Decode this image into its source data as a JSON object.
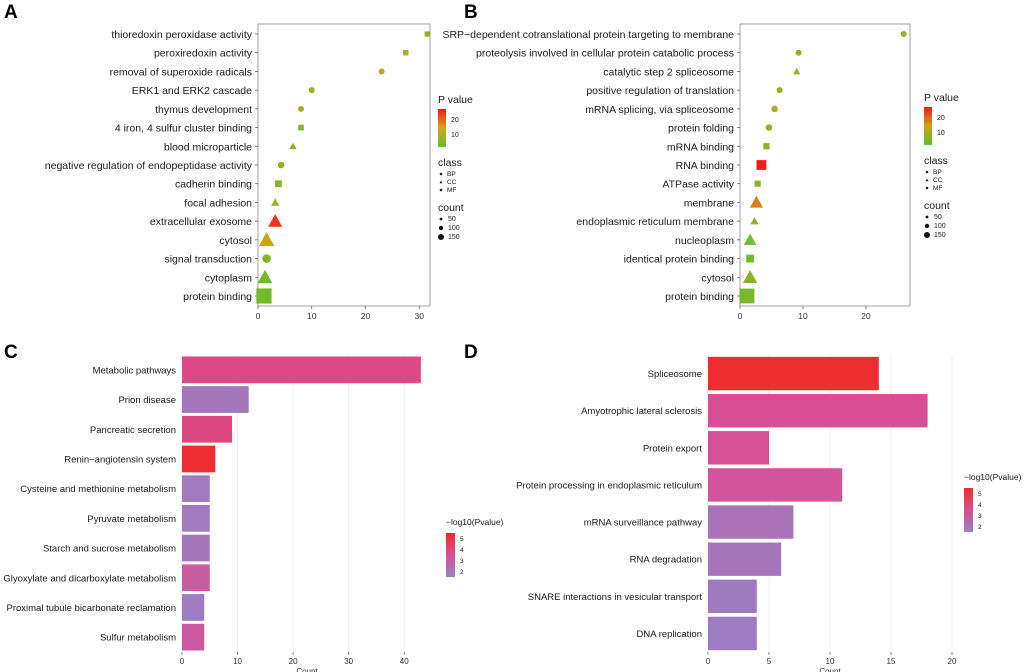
{
  "panels": [
    "A",
    "B",
    "C",
    "D"
  ],
  "chart_data": [
    {
      "id": "A",
      "type": "scatter",
      "title": "",
      "xlabel": "",
      "ylabel": "",
      "xlim": [
        0,
        32
      ],
      "xticks": [
        0,
        10,
        20,
        30
      ],
      "terms": [
        {
          "label": "thioredoxin peroxidase activity",
          "x": 31.5,
          "class": "MF",
          "count": 2,
          "p": 10
        },
        {
          "label": "peroxiredoxin activity",
          "x": 27.5,
          "class": "MF",
          "count": 2,
          "p": 12
        },
        {
          "label": "removal of superoxide radicals",
          "x": 23,
          "class": "BP",
          "count": 2,
          "p": 12
        },
        {
          "label": "ERK1 and ERK2 cascade",
          "x": 10,
          "class": "BP",
          "count": 2,
          "p": 10
        },
        {
          "label": "thymus development",
          "x": 8,
          "class": "BP",
          "count": 2,
          "p": 12
        },
        {
          "label": "4 iron, 4 sulfur cluster binding",
          "x": 8,
          "class": "MF",
          "count": 3,
          "p": 9
        },
        {
          "label": "blood microparticle",
          "x": 6.5,
          "class": "CC",
          "count": 3,
          "p": 9
        },
        {
          "label": "negative regulation of endopeptidase activity",
          "x": 4.3,
          "class": "BP",
          "count": 4,
          "p": 9
        },
        {
          "label": "cadherin binding",
          "x": 3.8,
          "class": "MF",
          "count": 8,
          "p": 9
        },
        {
          "label": "focal adhesion",
          "x": 3.2,
          "class": "CC",
          "count": 6,
          "p": 10
        },
        {
          "label": "extracellular exosome",
          "x": 3.2,
          "class": "CC",
          "count": 50,
          "p": 25
        },
        {
          "label": "cytosol",
          "x": 1.6,
          "class": "CC",
          "count": 70,
          "p": 15
        },
        {
          "label": "signal transduction",
          "x": 1.6,
          "class": "BP",
          "count": 14,
          "p": 8
        },
        {
          "label": "cytoplasm",
          "x": 1.3,
          "class": "CC",
          "count": 60,
          "p": 7
        },
        {
          "label": "protein binding",
          "x": 1.1,
          "class": "MF",
          "count": 130,
          "p": 7
        }
      ],
      "legend": {
        "p_title": "P value",
        "p_ticks": [
          20,
          10
        ],
        "class_title": "class",
        "classes": [
          "BP",
          "CC",
          "MF"
        ],
        "count_title": "count",
        "count_values": [
          50,
          100,
          150
        ]
      }
    },
    {
      "id": "B",
      "type": "scatter",
      "title": "",
      "xlabel": "",
      "ylabel": "",
      "xlim": [
        0,
        27
      ],
      "xticks": [
        0,
        10,
        20
      ],
      "terms": [
        {
          "label": "SRP−dependent cotranslational protein targeting to membrane",
          "x": 26,
          "class": "BP",
          "count": 2,
          "p": 10
        },
        {
          "label": "proteolysis involved in cellular protein catabolic process",
          "x": 9.3,
          "class": "BP",
          "count": 2,
          "p": 10
        },
        {
          "label": "catalytic step 2 spliceosome",
          "x": 9,
          "class": "CC",
          "count": 3,
          "p": 11
        },
        {
          "label": "positive regulation of translation",
          "x": 6.3,
          "class": "BP",
          "count": 2,
          "p": 10
        },
        {
          "label": "mRNA splicing, via spliceosome",
          "x": 5.5,
          "class": "BP",
          "count": 4,
          "p": 12
        },
        {
          "label": "protein folding",
          "x": 4.6,
          "class": "BP",
          "count": 4,
          "p": 10
        },
        {
          "label": "mRNA binding",
          "x": 4.2,
          "class": "MF",
          "count": 5,
          "p": 9
        },
        {
          "label": "RNA binding",
          "x": 3.4,
          "class": "MF",
          "count": 35,
          "p": 27
        },
        {
          "label": "ATPase activity",
          "x": 2.8,
          "class": "MF",
          "count": 5,
          "p": 9
        },
        {
          "label": "membrane",
          "x": 2.6,
          "class": "CC",
          "count": 40,
          "p": 19
        },
        {
          "label": "endoplasmic reticulum membrane",
          "x": 2.3,
          "class": "CC",
          "count": 6,
          "p": 9
        },
        {
          "label": "nucleoplasm",
          "x": 1.6,
          "class": "CC",
          "count": 35,
          "p": 7
        },
        {
          "label": "identical protein binding",
          "x": 1.6,
          "class": "MF",
          "count": 15,
          "p": 7
        },
        {
          "label": "cytosol",
          "x": 1.6,
          "class": "CC",
          "count": 55,
          "p": 9
        },
        {
          "label": "protein binding",
          "x": 1.1,
          "class": "MF",
          "count": 120,
          "p": 7
        }
      ],
      "legend": {
        "p_title": "P value",
        "p_ticks": [
          20,
          10
        ],
        "class_title": "class",
        "classes": [
          "BP",
          "CC",
          "MF"
        ],
        "count_title": "count",
        "count_values": [
          50,
          100,
          150
        ]
      }
    },
    {
      "id": "C",
      "type": "bar",
      "orientation": "horizontal",
      "title": "",
      "xlabel": "Count",
      "ylabel": "",
      "xlim": [
        0,
        45
      ],
      "xticks": [
        0,
        10,
        20,
        30,
        40
      ],
      "categories": [
        "Metabolic pathways",
        "Prion disease",
        "Pancreatic secretion",
        "Renin−angiotensin system",
        "Cysteine and methionine metabolism",
        "Pyruvate metabolism",
        "Starch and sucrose metabolism",
        "Glyoxylate and dicarboxylate metabolism",
        "Proximal tubule bicarbonate reclamation",
        "Sulfur metabolism"
      ],
      "values": [
        43,
        12,
        9,
        6,
        5,
        5,
        5,
        5,
        4,
        4
      ],
      "color_values": [
        3.7,
        1.8,
        3.8,
        5.2,
        1.7,
        1.7,
        1.8,
        2.9,
        1.6,
        3.0
      ],
      "legend": {
        "title": "−log10(Pvalue)",
        "ticks": [
          5,
          4,
          3,
          2
        ],
        "range": [
          1.5,
          5.3
        ]
      }
    },
    {
      "id": "D",
      "type": "bar",
      "orientation": "horizontal",
      "title": "",
      "xlabel": "Count",
      "ylabel": "",
      "xlim": [
        0,
        20
      ],
      "xticks": [
        0,
        5,
        10,
        15,
        20
      ],
      "categories": [
        "Spliceosome",
        "Amyotrophic lateral sclerosis",
        "Protein export",
        "Protein processing in endoplasmic reticulum",
        "mRNA surveillance pathway",
        "RNA degradation",
        "SNARE interactions in vesicular transport",
        "DNA replication"
      ],
      "values": [
        14,
        18,
        5,
        11,
        7,
        6,
        4,
        4
      ],
      "color_values": [
        5.4,
        3.5,
        3.4,
        3.3,
        2.0,
        1.9,
        1.7,
        1.6
      ],
      "legend": {
        "title": "−log10(Pvalue)",
        "ticks": [
          5,
          4,
          3,
          2
        ],
        "range": [
          1.5,
          5.5
        ]
      }
    }
  ]
}
